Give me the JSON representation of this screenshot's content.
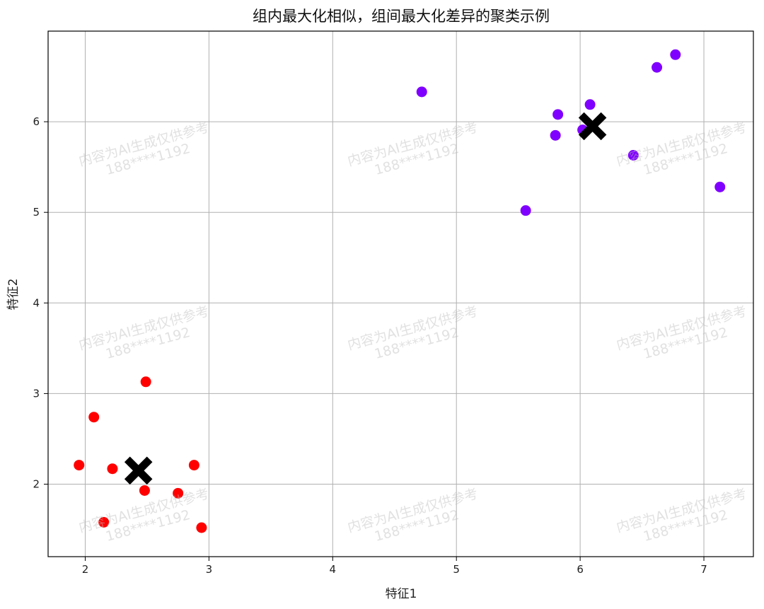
{
  "chart_data": {
    "type": "scatter",
    "title": "组内最大化相似，组间最大化差异的聚类示例",
    "xlabel": "特征1",
    "ylabel": "特征2",
    "xlim": [
      1.7,
      7.4
    ],
    "ylim": [
      1.2,
      7.0
    ],
    "xticks": [
      2,
      3,
      4,
      5,
      6,
      7
    ],
    "yticks": [
      2,
      3,
      4,
      5,
      6
    ],
    "grid": true,
    "clusters": [
      {
        "color": "#ff0000",
        "points": [
          [
            1.95,
            2.21
          ],
          [
            2.07,
            2.74
          ],
          [
            2.49,
            3.13
          ],
          [
            2.22,
            2.17
          ],
          [
            2.15,
            1.58
          ],
          [
            2.48,
            1.93
          ],
          [
            2.75,
            1.9
          ],
          [
            2.88,
            2.21
          ],
          [
            2.94,
            1.52
          ]
        ],
        "centroid": [
          2.43,
          2.15
        ]
      },
      {
        "color": "#8000ff",
        "points": [
          [
            4.72,
            6.33
          ],
          [
            5.56,
            5.02
          ],
          [
            5.8,
            5.85
          ],
          [
            5.82,
            6.08
          ],
          [
            6.02,
            5.91
          ],
          [
            6.08,
            6.19
          ],
          [
            6.43,
            5.63
          ],
          [
            6.62,
            6.6
          ],
          [
            6.77,
            6.74
          ],
          [
            7.13,
            5.28
          ]
        ],
        "centroid": [
          6.1,
          5.95
        ]
      }
    ],
    "centroid_marker": "X",
    "centroid_color": "#000000"
  },
  "watermark": {
    "line1": "内容为AI生成仅供参考",
    "line2": "188****1192"
  }
}
